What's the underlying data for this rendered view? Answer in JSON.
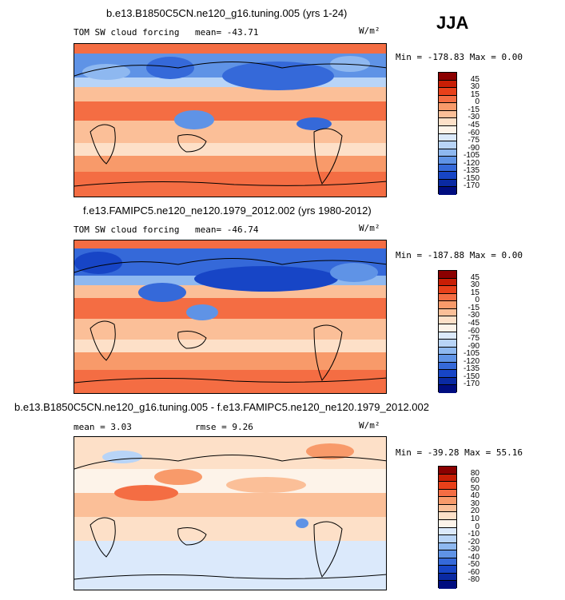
{
  "season": "JJA",
  "panels": [
    {
      "title": "b.e13.B1850C5CN.ne120_g16.tuning.005 (yrs 1-24)",
      "subtitle": "TOM SW cloud forcing",
      "mean_label": "mean= -43.71",
      "units": "W/m²",
      "minmax": "Min = -178.83 Max =   0.00",
      "colorbar_labels": [
        "45",
        "30",
        "15",
        "0",
        "-15",
        "-30",
        "-45",
        "-60",
        "-75",
        "-90",
        "-105",
        "-120",
        "-135",
        "-150",
        "-170"
      ],
      "colorbar_colors": [
        "#8b0000",
        "#c81e05",
        "#e8401a",
        "#f46d43",
        "#f89a6a",
        "#fbbf98",
        "#fde0c8",
        "#fdf3e9",
        "#dbe9fb",
        "#b8d4f7",
        "#8eb8f0",
        "#5f93e6",
        "#3569d9",
        "#1745c6",
        "#0a2aa3",
        "#000d80"
      ]
    },
    {
      "title": "f.e13.FAMIPC5.ne120_ne120.1979_2012.002 (yrs 1980-2012)",
      "subtitle": "TOM SW cloud forcing",
      "mean_label": "mean= -46.74",
      "units": "W/m²",
      "minmax": "Min = -187.88 Max =   0.00",
      "colorbar_labels": [
        "45",
        "30",
        "15",
        "0",
        "-15",
        "-30",
        "-45",
        "-60",
        "-75",
        "-90",
        "-105",
        "-120",
        "-135",
        "-150",
        "-170"
      ],
      "colorbar_colors": [
        "#8b0000",
        "#c81e05",
        "#e8401a",
        "#f46d43",
        "#f89a6a",
        "#fbbf98",
        "#fde0c8",
        "#fdf3e9",
        "#dbe9fb",
        "#b8d4f7",
        "#8eb8f0",
        "#5f93e6",
        "#3569d9",
        "#1745c6",
        "#0a2aa3",
        "#000d80"
      ]
    },
    {
      "title": "b.e13.B1850C5CN.ne120_g16.tuning.005 - f.e13.FAMIPC5.ne120_ne120.1979_2012.002",
      "mean_label": "mean =    3.03",
      "rmse_label": "rmse =    9.26",
      "units": "W/m²",
      "minmax": "Min = -39.28 Max =  55.16",
      "colorbar_labels": [
        "80",
        "60",
        "50",
        "40",
        "30",
        "20",
        "10",
        "0",
        "-10",
        "-20",
        "-30",
        "-40",
        "-50",
        "-60",
        "-80"
      ],
      "colorbar_colors": [
        "#8b0000",
        "#c81e05",
        "#e8401a",
        "#f46d43",
        "#f89a6a",
        "#fbbf98",
        "#fde0c8",
        "#fdf3e9",
        "#dbe9fb",
        "#b8d4f7",
        "#8eb8f0",
        "#5f93e6",
        "#3569d9",
        "#1745c6",
        "#0a2aa3",
        "#000d80"
      ]
    }
  ]
}
